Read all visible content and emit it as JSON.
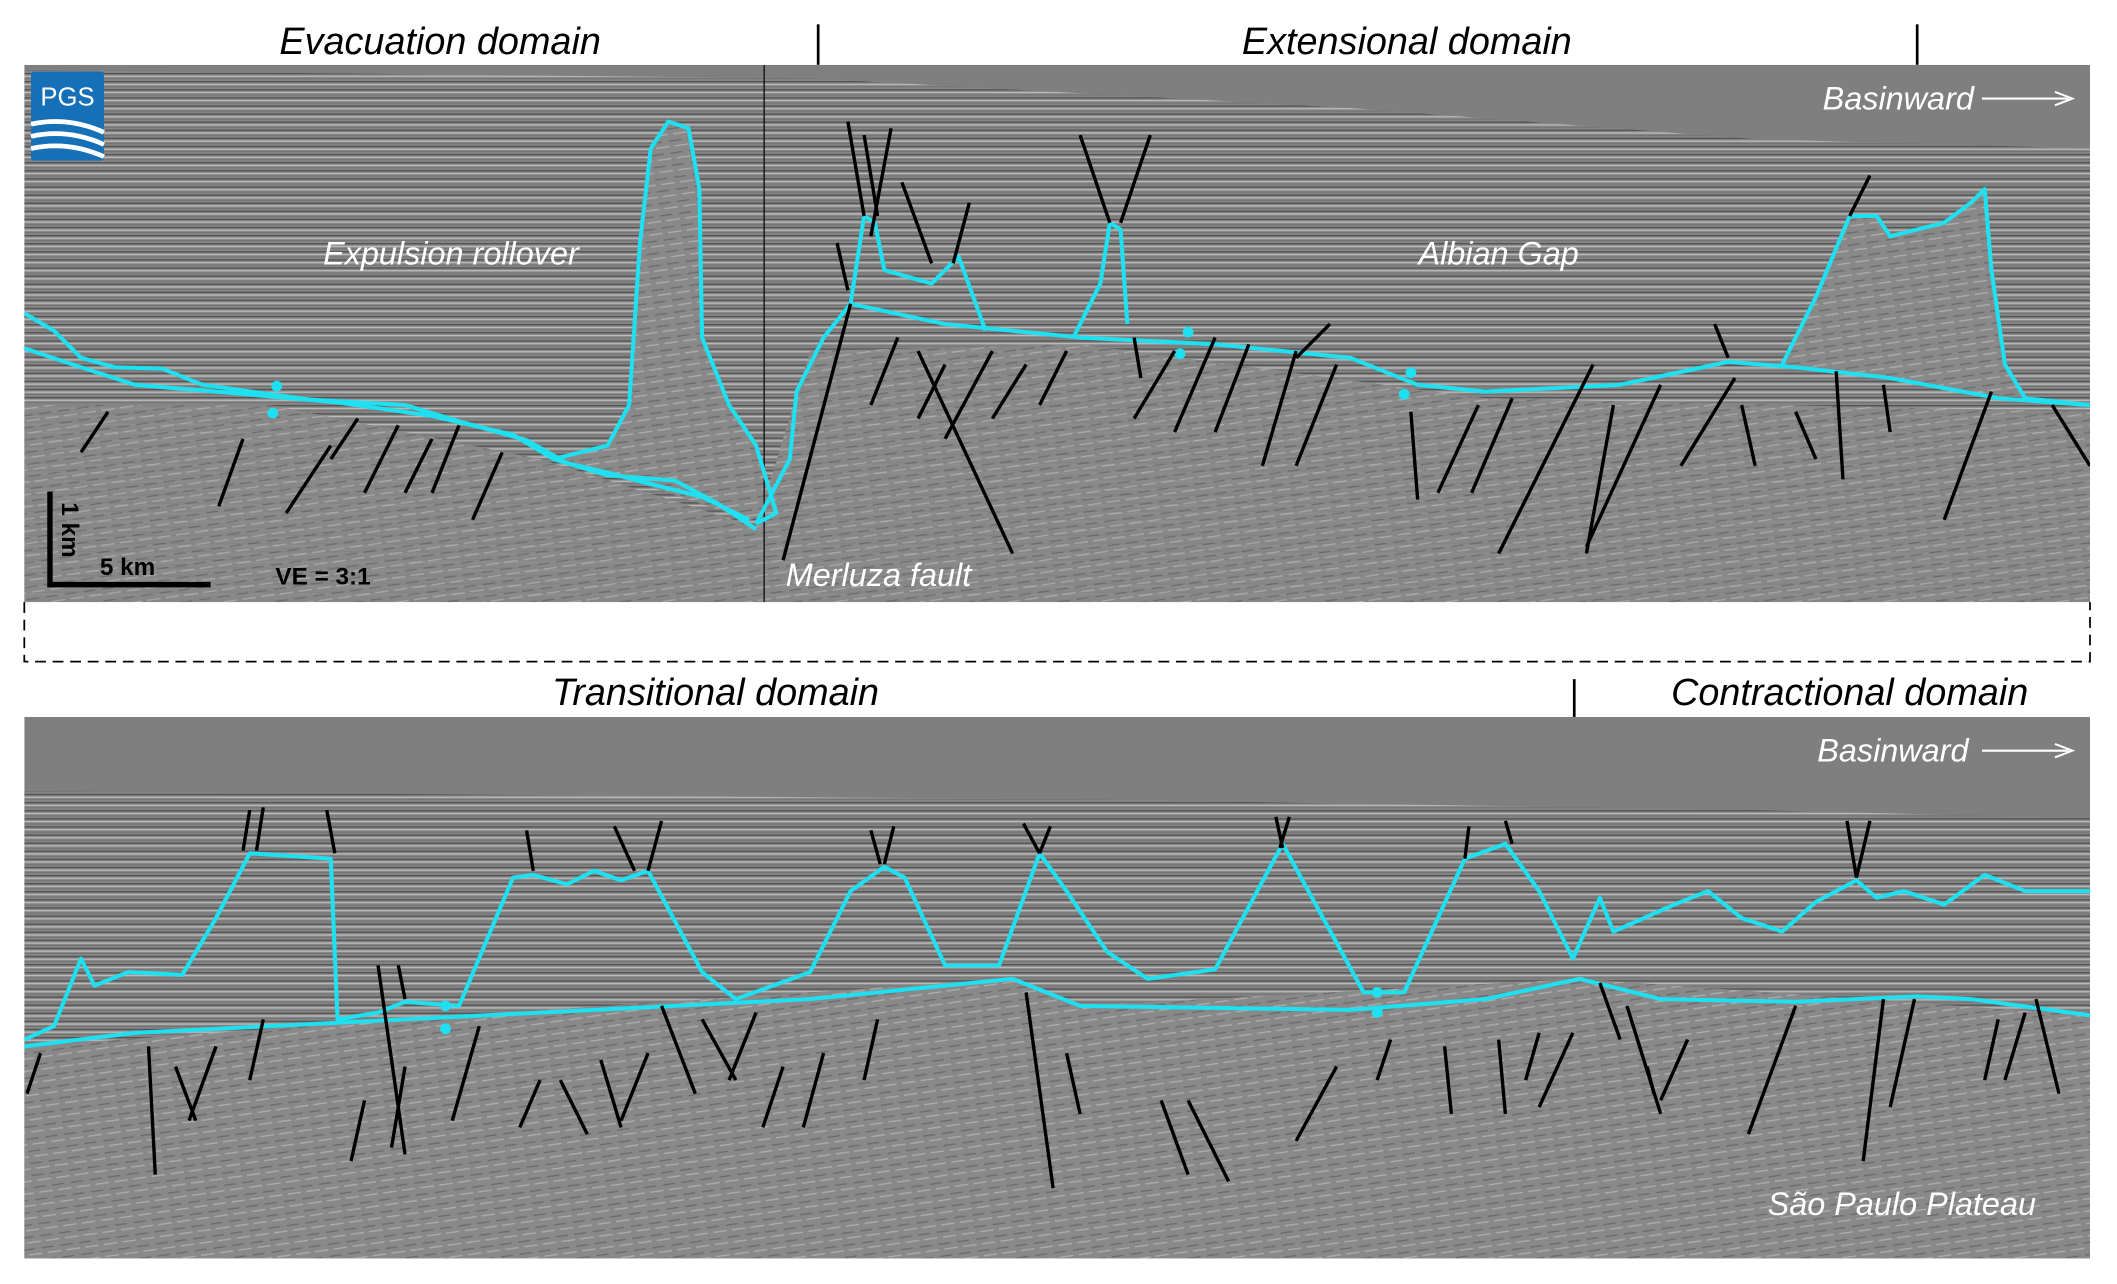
{
  "top_panel": {
    "domains": [
      "Evacuation domain",
      "Extensional domain"
    ],
    "basinward": "Basinward",
    "labels": {
      "expulsion_rollover": "Expulsion rollover",
      "albian_gap": "Albian Gap",
      "merluza_fault": "Merluza fault"
    },
    "logo": "PGS",
    "scale": {
      "vertical": "1 km",
      "horizontal": "5 km",
      "ve": "VE = 3:1"
    }
  },
  "bottom_panel": {
    "domains": [
      "Transitional domain",
      "Contractional domain"
    ],
    "basinward": "Basinward",
    "labels": {
      "sao_paulo_plateau": "São Paulo Plateau"
    }
  },
  "colors": {
    "salt_outline": "#1ee0f0",
    "faults": "#000000",
    "seismic_background": "#858585",
    "water_column": "#7f7f7f"
  }
}
